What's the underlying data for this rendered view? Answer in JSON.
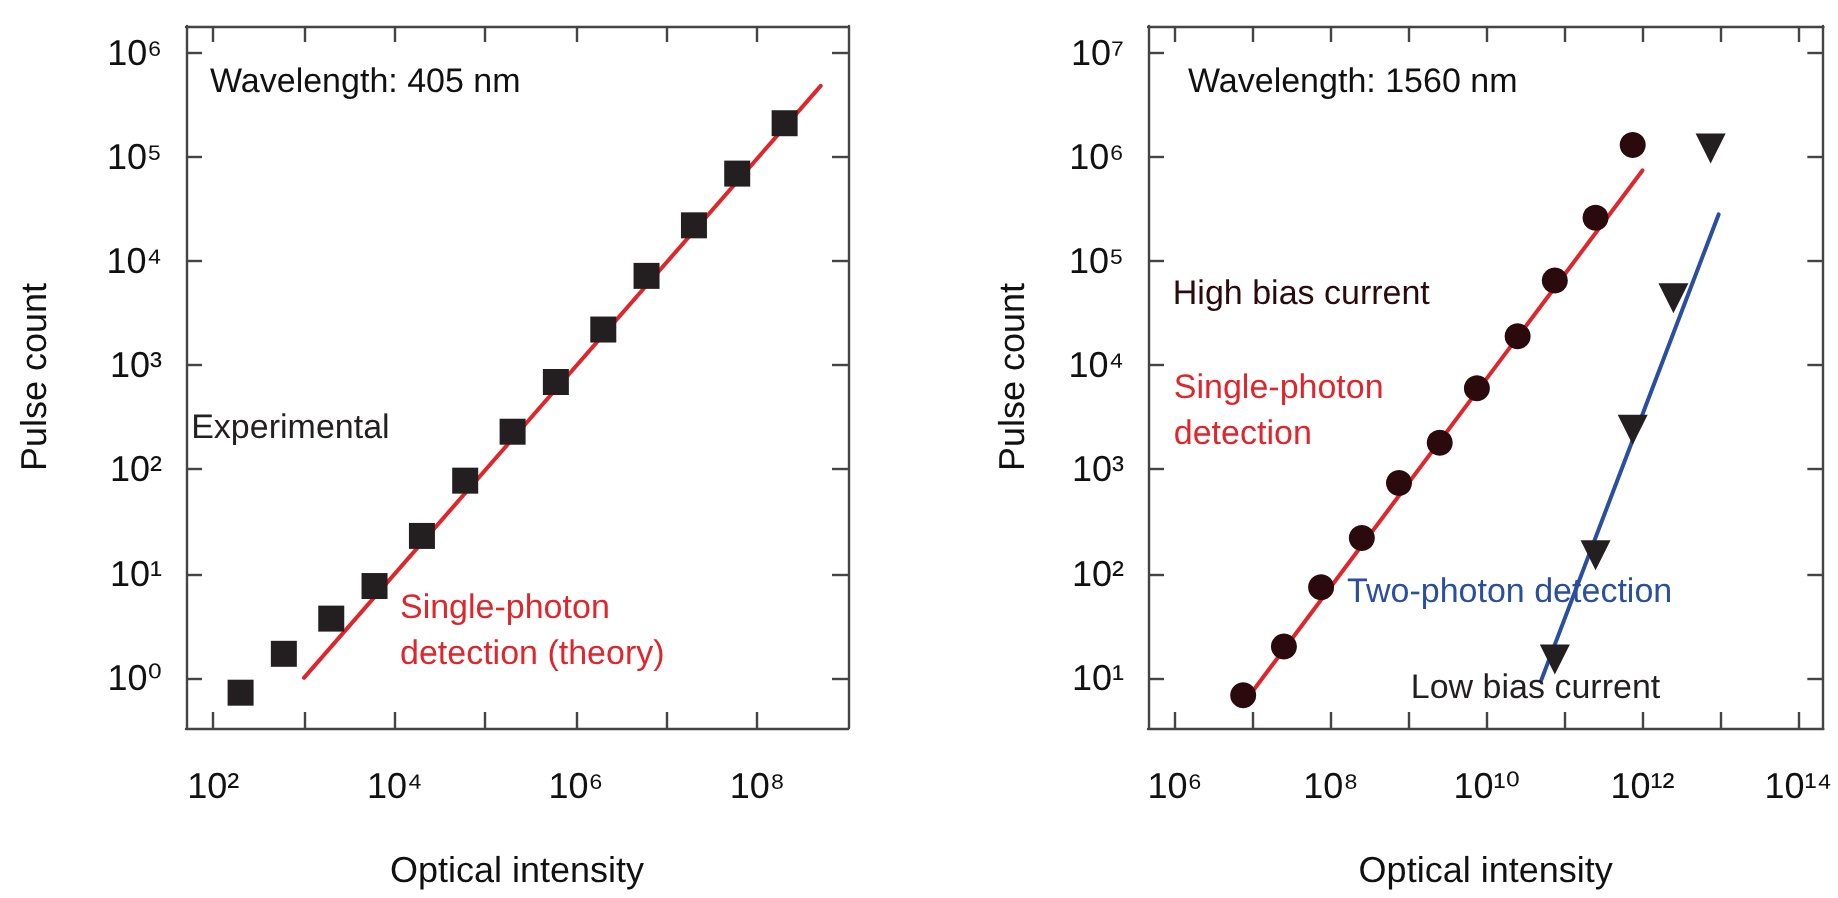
{
  "chart_data": [
    {
      "type": "scatter",
      "title": "Wavelength: 405 nm",
      "xlabel": "Optical intensity",
      "ylabel": "Pulse count",
      "log": "xy",
      "xlim": [
        50,
        1000000000
      ],
      "ylim": [
        0.33,
        1800000
      ],
      "xticks": [
        {
          "value": 100,
          "label": "10²"
        },
        {
          "value": 1000,
          "label": null
        },
        {
          "value": 10000,
          "label": "10⁴"
        },
        {
          "value": 100000,
          "label": null
        },
        {
          "value": 1000000,
          "label": "10⁶"
        },
        {
          "value": 10000000,
          "label": null
        },
        {
          "value": 100000000,
          "label": "10⁸"
        }
      ],
      "yticks": [
        {
          "value": 1,
          "label": "10⁰"
        },
        {
          "value": 10,
          "label": "10¹"
        },
        {
          "value": 100,
          "label": "10²"
        },
        {
          "value": 1000,
          "label": "10³"
        },
        {
          "value": 10000,
          "label": "10⁴"
        },
        {
          "value": 100000,
          "label": "10⁵"
        },
        {
          "value": 1000000,
          "label": "10⁶"
        }
      ],
      "series": [
        {
          "name": "Experimental",
          "marker": "square",
          "color": "#231f20",
          "x": [
            200,
            600,
            2000,
            6000,
            20000,
            60000,
            200000,
            600000,
            2000000,
            6000000,
            20000000,
            60000000,
            200000000
          ],
          "values": [
            0.72,
            1.7,
            3.7,
            7.6,
            23,
            78,
            230,
            690,
            2200,
            7200,
            22000,
            69000,
            210000
          ]
        },
        {
          "name": "Single-photon detection (theory)",
          "type": "line",
          "marker": "none",
          "color": "#e0262b",
          "x": [
            1000,
            500000000
          ],
          "values": [
            1,
            480000
          ]
        }
      ]
    },
    {
      "type": "scatter",
      "title": "Wavelength: 1560 nm",
      "xlabel": "Optical intensity",
      "ylabel": "Pulse count",
      "log": "xy",
      "xlim": [
        450000,
        210000000000000
      ],
      "ylim": [
        3.3,
        18000000
      ],
      "xticks": [
        {
          "value": 1000000,
          "label": "10⁶"
        },
        {
          "value": 10000000,
          "label": null
        },
        {
          "value": 100000000,
          "label": "10⁸"
        },
        {
          "value": 1000000000,
          "label": null
        },
        {
          "value": 10000000000,
          "label": "10¹⁰"
        },
        {
          "value": 100000000000,
          "label": null
        },
        {
          "value": 1000000000000,
          "label": "10¹²"
        },
        {
          "value": 10000000000000,
          "label": null
        },
        {
          "value": 100000000000000,
          "label": "10¹⁴"
        }
      ],
      "yticks": [
        {
          "value": 10,
          "label": "10¹"
        },
        {
          "value": 100,
          "label": "10²"
        },
        {
          "value": 1000,
          "label": "10³"
        },
        {
          "value": 10000,
          "label": "10⁴"
        },
        {
          "value": 100000,
          "label": "10⁵"
        },
        {
          "value": 1000000,
          "label": "10⁶"
        },
        {
          "value": 10000000,
          "label": "10⁷"
        }
      ],
      "series": [
        {
          "name": "High bias current",
          "marker": "circle",
          "color": "#2a0a0c",
          "x": [
            7500000,
            25000000,
            75000000,
            250000000,
            750000000,
            2500000000,
            7500000000,
            25000000000,
            75000000000,
            250000000000,
            750000000000
          ],
          "values": [
            6.8,
            20,
            74,
            220,
            740,
            1800,
            6000,
            19000,
            65000,
            260000,
            1300000
          ]
        },
        {
          "name": "Single-photon detection",
          "type": "line",
          "marker": "none",
          "color": "#e0262b",
          "x": [
            7200000,
            1000000000000
          ],
          "values": [
            5.4,
            740000
          ]
        },
        {
          "name": "Low bias current",
          "marker": "triangle",
          "color": "#231f20",
          "x": [
            75000000000,
            250000000000,
            750000000000,
            2500000000000,
            7500000000000
          ],
          "values": [
            15,
            150,
            2400,
            44000,
            1200000
          ]
        },
        {
          "name": "Two-photon detection",
          "type": "line",
          "marker": "none",
          "color": "#2a4ea0",
          "x": [
            50000000000,
            9500000000000
          ],
          "values": [
            9.4,
            280000
          ]
        }
      ]
    }
  ]
}
